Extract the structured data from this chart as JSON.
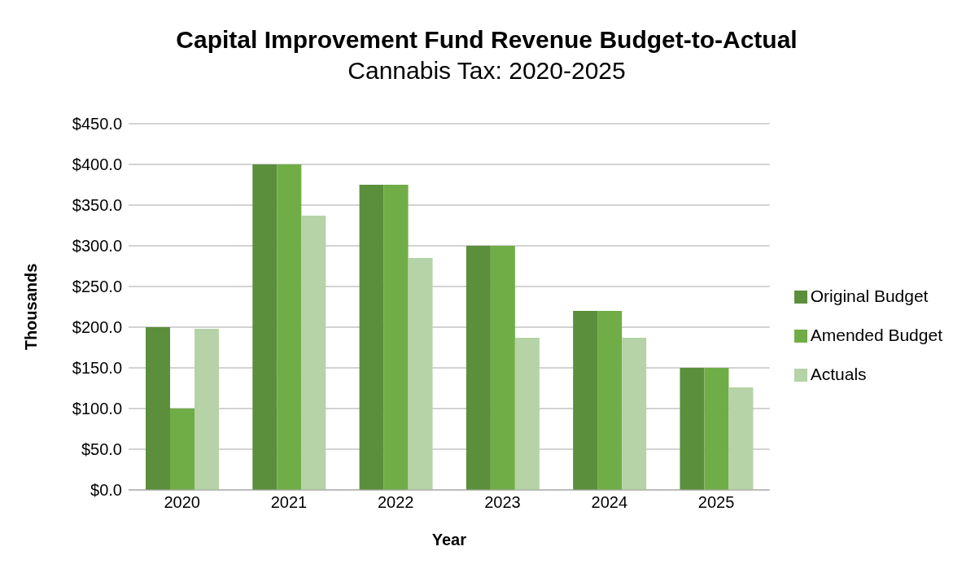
{
  "chart_data": {
    "type": "bar",
    "title": "Capital Improvement Fund Revenue Budget-to-Actual",
    "subtitle": "Cannabis Tax: 2020-2025",
    "xlabel": "Year",
    "ylabel": "Thousands",
    "categories": [
      "2020",
      "2021",
      "2022",
      "2023",
      "2024",
      "2025"
    ],
    "series": [
      {
        "name": "Original Budget",
        "color": "#5b8f3c",
        "values": [
          200,
          400,
          375,
          300,
          220,
          150
        ]
      },
      {
        "name": "Amended Budget",
        "color": "#70ad47",
        "values": [
          100,
          400,
          375,
          300,
          220,
          150
        ]
      },
      {
        "name": "Actuals",
        "color": "#b5d3a7",
        "values": [
          198,
          337,
          285,
          187,
          187,
          126
        ]
      }
    ],
    "ylim": [
      0,
      450
    ],
    "yticks": [
      {
        "value": 0,
        "label": "$0.0"
      },
      {
        "value": 50,
        "label": "$50.0"
      },
      {
        "value": 100,
        "label": "$100.0"
      },
      {
        "value": 150,
        "label": "$150.0"
      },
      {
        "value": 200,
        "label": "$200.0"
      },
      {
        "value": 250,
        "label": "$250.0"
      },
      {
        "value": 300,
        "label": "$300.0"
      },
      {
        "value": 350,
        "label": "$350.0"
      },
      {
        "value": 400,
        "label": "$400.0"
      },
      {
        "value": 450,
        "label": "$450.0"
      }
    ],
    "grid": "y",
    "legend": "right"
  }
}
